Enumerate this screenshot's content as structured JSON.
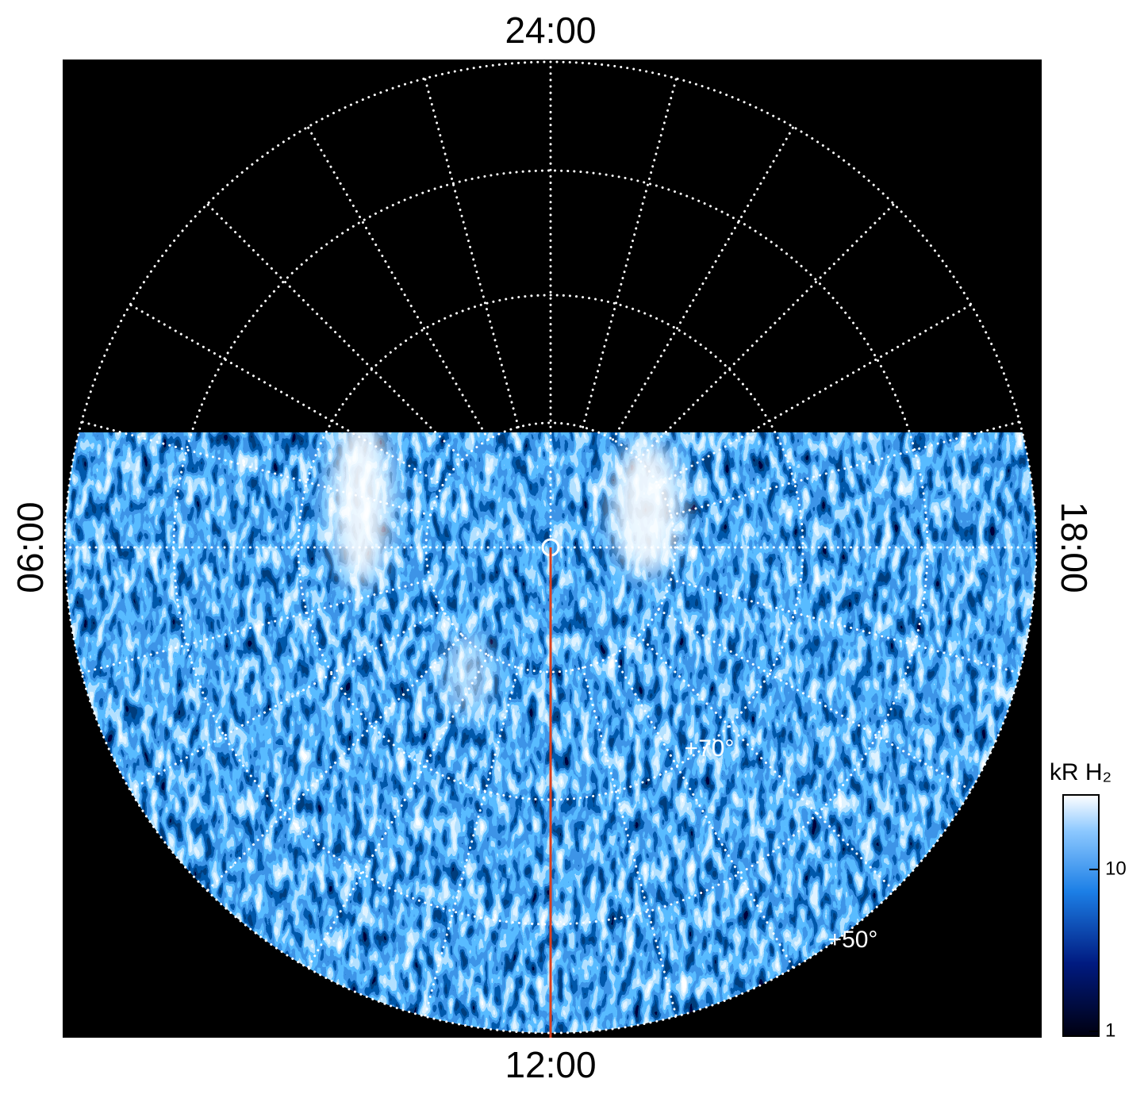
{
  "chart_data": {
    "type": "polar-image",
    "top_label": "24:00",
    "bottom_label": "12:00",
    "left_label": "06:00",
    "right_label": "18:00",
    "ring_labels": [
      "+70°",
      "+50°"
    ],
    "colorbar": {
      "label": "kR H₂",
      "scale": "log",
      "clim": [
        1,
        28
      ],
      "ticks": [
        1,
        10
      ]
    },
    "meridian_color": "#d84020"
  }
}
